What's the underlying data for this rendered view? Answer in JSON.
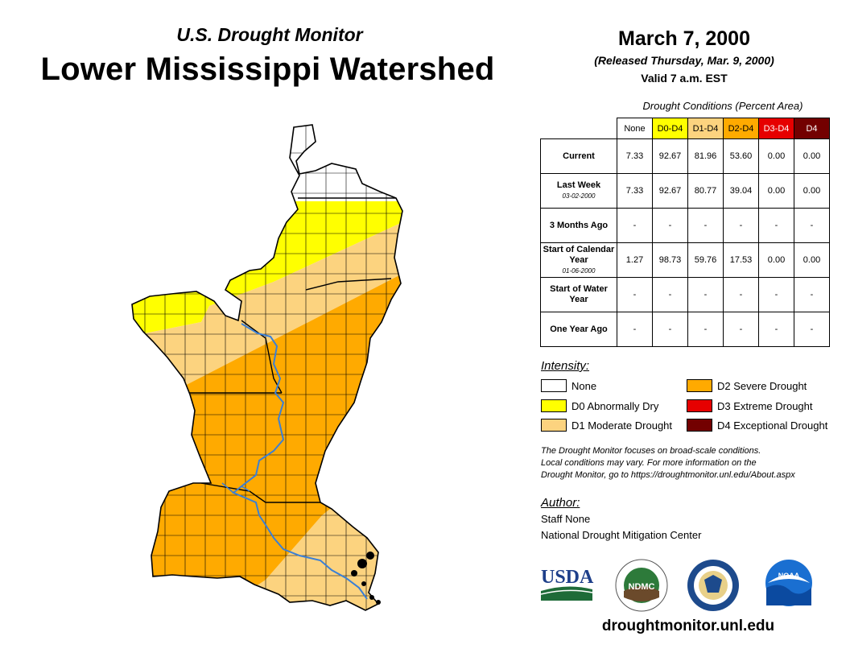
{
  "header": {
    "subtitle": "U.S. Drought Monitor",
    "title": "Lower Mississippi Watershed",
    "date": "March 7, 2000",
    "released": "(Released Thursday, Mar. 9, 2000)",
    "valid": "Valid 7 a.m. EST"
  },
  "table": {
    "caption": "Drought Conditions (Percent Area)",
    "columns": [
      "None",
      "D0-D4",
      "D1-D4",
      "D2-D4",
      "D3-D4",
      "D4"
    ],
    "column_colors": [
      "#ffffff",
      "#ffff00",
      "#fcd37f",
      "#ffaa00",
      "#e60000",
      "#730000"
    ],
    "column_text_colors": [
      "#000000",
      "#000000",
      "#000000",
      "#000000",
      "#ffffff",
      "#ffffff"
    ],
    "rows": [
      {
        "label": "Current",
        "sub": "",
        "values": [
          "7.33",
          "92.67",
          "81.96",
          "53.60",
          "0.00",
          "0.00"
        ]
      },
      {
        "label": "Last Week",
        "sub": "03-02-2000",
        "values": [
          "7.33",
          "92.67",
          "80.77",
          "39.04",
          "0.00",
          "0.00"
        ]
      },
      {
        "label": "3 Months Ago",
        "sub": "",
        "values": [
          "-",
          "-",
          "-",
          "-",
          "-",
          "-"
        ]
      },
      {
        "label": "Start of Calendar Year",
        "sub": "01-06-2000",
        "values": [
          "1.27",
          "98.73",
          "59.76",
          "17.53",
          "0.00",
          "0.00"
        ]
      },
      {
        "label": "Start of Water Year",
        "sub": "",
        "values": [
          "-",
          "-",
          "-",
          "-",
          "-",
          "-"
        ]
      },
      {
        "label": "One Year Ago",
        "sub": "",
        "values": [
          "-",
          "-",
          "-",
          "-",
          "-",
          "-"
        ]
      }
    ]
  },
  "legend": {
    "title": "Intensity:",
    "items": [
      {
        "label": "None",
        "color": "#ffffff"
      },
      {
        "label": "D0 Abnormally Dry",
        "color": "#ffff00"
      },
      {
        "label": "D1 Moderate Drought",
        "color": "#fcd37f"
      },
      {
        "label": "D2 Severe Drought",
        "color": "#ffaa00"
      },
      {
        "label": "D3 Extreme Drought",
        "color": "#e60000"
      },
      {
        "label": "D4 Exceptional Drought",
        "color": "#730000"
      }
    ]
  },
  "note": {
    "line1": "The Drought Monitor focuses on broad-scale conditions.",
    "line2": "Local conditions may vary. For more information on the",
    "line3": "Drought Monitor, go to https://droughtmonitor.unl.edu/About.aspx"
  },
  "author": {
    "title": "Author:",
    "name": "Staff None",
    "org": "National Drought Mitigation Center"
  },
  "logos": {
    "usda": "USDA",
    "ndmc": "NDMC",
    "noaa": "NOAA"
  },
  "website": "droughtmonitor.unl.edu",
  "colors": {
    "none": "#ffffff",
    "d0": "#ffff00",
    "d1": "#fcd37f",
    "d2": "#ffaa00",
    "river": "#3a7fd5",
    "county": "#000000"
  }
}
